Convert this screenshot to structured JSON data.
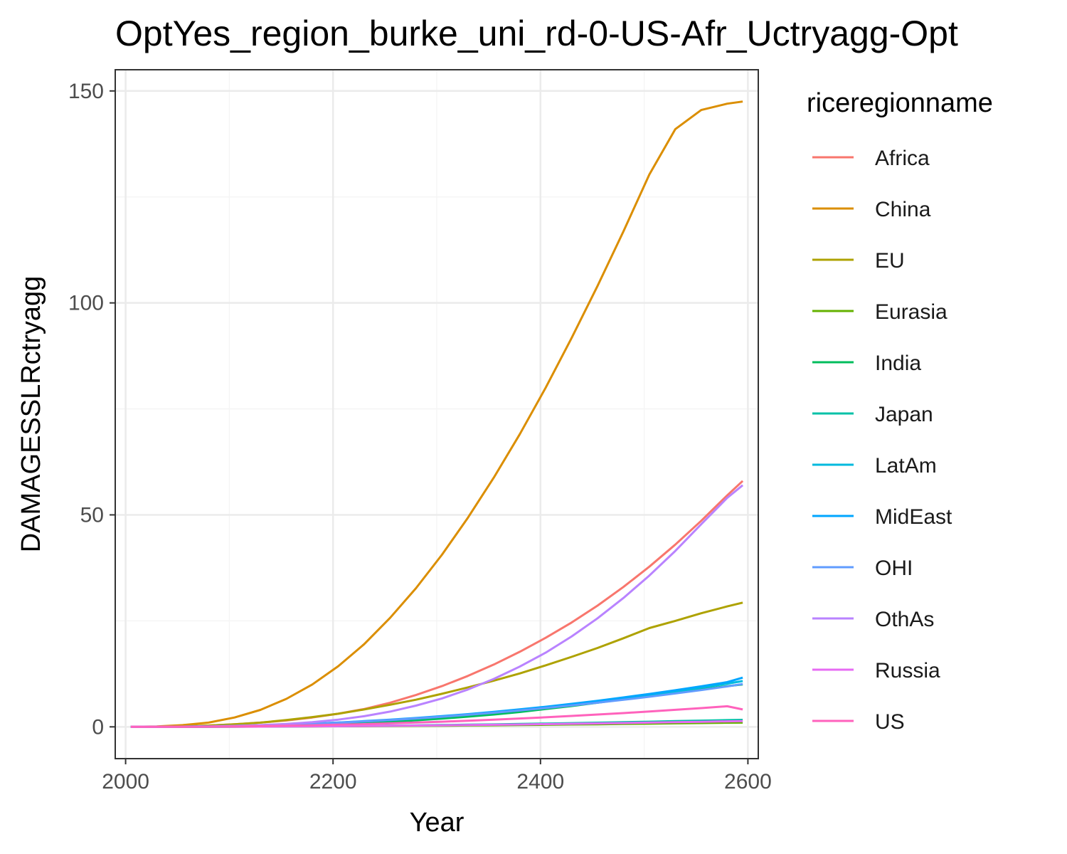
{
  "chart_data": {
    "type": "line",
    "title": "OptYes_region_burke_uni_rd-0-US-Afr_Uctryagg-Opt",
    "xlabel": "Year",
    "ylabel": "DAMAGESSLRctryagg",
    "legend_title": "riceregionname",
    "legend_position": "right",
    "grid": true,
    "xlim": [
      1990,
      2610
    ],
    "ylim": [
      -7.5,
      155
    ],
    "x_ticks": [
      2000,
      2200,
      2400,
      2600
    ],
    "y_ticks": [
      0,
      50,
      100,
      150
    ],
    "x": [
      2005,
      2030,
      2055,
      2080,
      2105,
      2130,
      2155,
      2180,
      2205,
      2230,
      2255,
      2280,
      2305,
      2330,
      2355,
      2380,
      2405,
      2430,
      2455,
      2480,
      2505,
      2530,
      2555,
      2580,
      2595
    ],
    "series": [
      {
        "name": "Africa",
        "color": "#F8766D",
        "values": [
          0.0,
          0.02,
          0.1,
          0.3,
          0.6,
          1.0,
          1.5,
          2.2,
          3.1,
          4.2,
          5.7,
          7.5,
          9.6,
          12.0,
          14.7,
          17.7,
          21.0,
          24.6,
          28.6,
          33.0,
          37.8,
          43.0,
          48.6,
          54.6,
          58.0
        ]
      },
      {
        "name": "China",
        "color": "#DB8E00",
        "values": [
          0.0,
          0.1,
          0.4,
          1.0,
          2.2,
          4.0,
          6.6,
          10.0,
          14.3,
          19.5,
          25.7,
          32.7,
          40.6,
          49.3,
          58.8,
          69.0,
          80.0,
          91.7,
          104.0,
          116.9,
          130.3,
          141.0,
          145.5,
          147.0,
          147.5
        ]
      },
      {
        "name": "EU",
        "color": "#AEA200",
        "values": [
          0.0,
          0.02,
          0.1,
          0.3,
          0.6,
          1.0,
          1.6,
          2.3,
          3.1,
          4.1,
          5.2,
          6.4,
          7.8,
          9.3,
          10.9,
          12.6,
          14.5,
          16.5,
          18.6,
          20.9,
          23.3,
          25.0,
          26.8,
          28.4,
          29.3
        ]
      },
      {
        "name": "Eurasia",
        "color": "#64B200",
        "values": [
          0.0,
          0.0,
          0.01,
          0.02,
          0.04,
          0.06,
          0.08,
          0.1,
          0.13,
          0.16,
          0.2,
          0.24,
          0.28,
          0.33,
          0.38,
          0.43,
          0.49,
          0.55,
          0.61,
          0.68,
          0.75,
          0.82,
          0.9,
          0.98,
          1.0
        ]
      },
      {
        "name": "India",
        "color": "#00BD5C",
        "values": [
          0.0,
          0.0,
          0.02,
          0.05,
          0.1,
          0.18,
          0.3,
          0.45,
          0.65,
          0.9,
          1.2,
          1.55,
          1.95,
          2.4,
          2.9,
          3.5,
          4.2,
          4.9,
          5.7,
          6.5,
          7.3,
          8.0,
          8.8,
          9.6,
          10.0
        ]
      },
      {
        "name": "Japan",
        "color": "#00C1A7",
        "values": [
          0.0,
          0.0,
          0.01,
          0.02,
          0.04,
          0.07,
          0.1,
          0.14,
          0.18,
          0.23,
          0.29,
          0.35,
          0.42,
          0.5,
          0.58,
          0.67,
          0.77,
          0.87,
          0.98,
          1.1,
          1.22,
          1.34,
          1.46,
          1.58,
          1.65
        ]
      },
      {
        "name": "LatAm",
        "color": "#00BADE",
        "values": [
          0.0,
          0.01,
          0.05,
          0.12,
          0.22,
          0.35,
          0.52,
          0.73,
          0.98,
          1.27,
          1.6,
          1.97,
          2.39,
          2.85,
          3.36,
          3.92,
          4.53,
          5.19,
          5.9,
          6.66,
          7.47,
          8.33,
          9.24,
          10.2,
          10.8
        ]
      },
      {
        "name": "MidEast",
        "color": "#00A6FF",
        "values": [
          0.0,
          0.01,
          0.05,
          0.12,
          0.23,
          0.37,
          0.55,
          0.77,
          1.03,
          1.34,
          1.69,
          2.08,
          2.52,
          3.0,
          3.53,
          4.11,
          4.74,
          5.42,
          6.15,
          6.93,
          7.76,
          8.64,
          9.57,
          10.55,
          11.6
        ]
      },
      {
        "name": "OHI",
        "color": "#619CFF",
        "values": [
          0.0,
          0.01,
          0.05,
          0.12,
          0.22,
          0.36,
          0.53,
          0.74,
          0.99,
          1.28,
          1.61,
          1.98,
          2.39,
          2.84,
          3.33,
          3.86,
          4.43,
          5.04,
          5.69,
          6.38,
          7.11,
          7.88,
          8.69,
          9.54,
          10.1
        ]
      },
      {
        "name": "OthAs",
        "color": "#B983FF",
        "values": [
          0.0,
          0.01,
          0.04,
          0.1,
          0.2,
          0.4,
          0.7,
          1.1,
          1.7,
          2.5,
          3.6,
          5.0,
          6.7,
          8.8,
          11.3,
          14.2,
          17.5,
          21.3,
          25.6,
          30.4,
          35.7,
          41.5,
          47.8,
          54.0,
          57.0
        ]
      },
      {
        "name": "Russia",
        "color": "#E76BF3",
        "values": [
          0.0,
          0.0,
          0.01,
          0.02,
          0.04,
          0.06,
          0.09,
          0.12,
          0.16,
          0.2,
          0.25,
          0.3,
          0.36,
          0.42,
          0.49,
          0.56,
          0.64,
          0.72,
          0.81,
          0.9,
          1.0,
          1.1,
          1.2,
          1.3,
          1.35
        ]
      },
      {
        "name": "US",
        "color": "#FF62BC",
        "values": [
          0.0,
          0.0,
          0.02,
          0.05,
          0.1,
          0.17,
          0.26,
          0.37,
          0.5,
          0.65,
          0.82,
          1.01,
          1.22,
          1.45,
          1.7,
          1.97,
          2.26,
          2.57,
          2.9,
          3.25,
          3.62,
          4.01,
          4.42,
          4.85,
          4.1
        ]
      }
    ]
  },
  "colors": {
    "panel_border": "#333333",
    "grid_major": "#ebebeb",
    "grid_minor": "#f5f5f5",
    "tick_text": "#4d4d4d"
  }
}
